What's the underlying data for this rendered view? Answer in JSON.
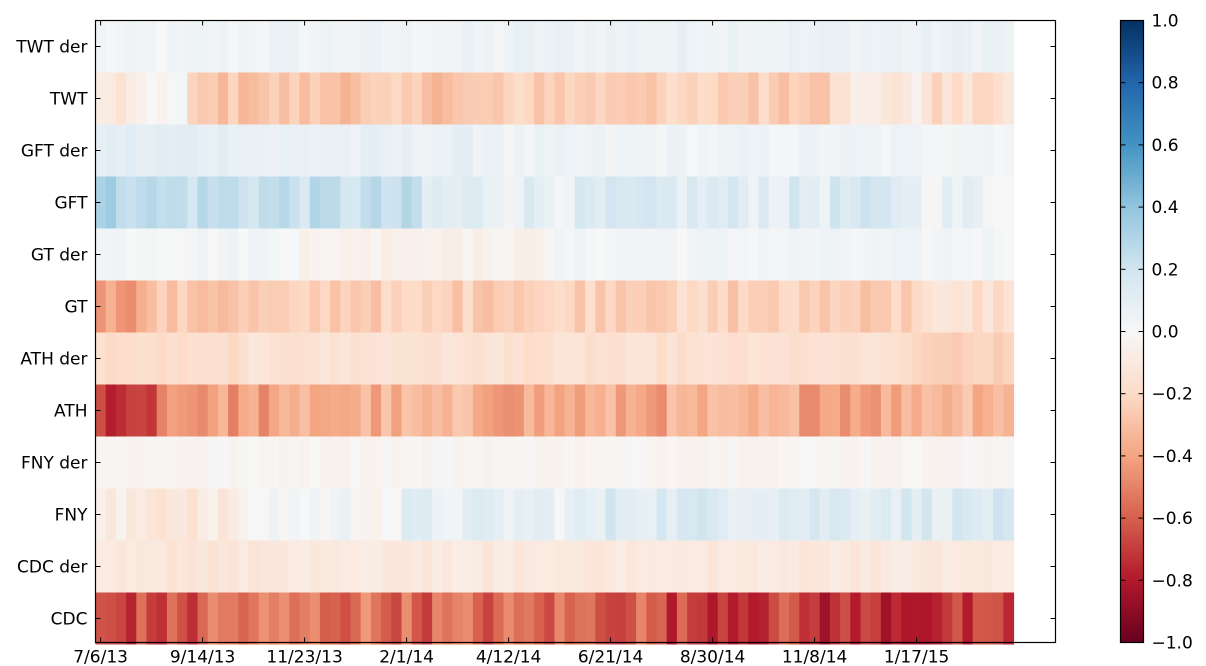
{
  "chart_data": {
    "type": "heatmap",
    "title": "",
    "xlabel": "",
    "ylabel": "",
    "rows": [
      "TWT der",
      "TWT",
      "GFT der",
      "GFT",
      "GT der",
      "GT",
      "ATH der",
      "ATH",
      "FNY der",
      "FNY",
      "CDC der",
      "CDC"
    ],
    "x_tick_labels": [
      "7/6/13",
      "9/14/13",
      "11/23/13",
      "2/1/14",
      "4/12/14",
      "6/21/14",
      "8/30/14",
      "11/8/14",
      "1/17/15"
    ],
    "x_tick_week_index": [
      0,
      10,
      20,
      30,
      40,
      50,
      60,
      70,
      80
    ],
    "n_weeks": 90,
    "colorbar": {
      "colormap": "RdBu",
      "min": -1.0,
      "max": 1.0,
      "tick_labels": [
        "1.0",
        "0.8",
        "0.6",
        "0.4",
        "0.2",
        "0.0",
        "−0.2",
        "−0.4",
        "−0.6",
        "−0.8",
        "−1.0"
      ],
      "tick_values": [
        1.0,
        0.8,
        0.6,
        0.4,
        0.2,
        0.0,
        -0.2,
        -0.4,
        -0.6,
        -0.8,
        -1.0
      ]
    },
    "row_profiles": [
      {
        "row": "TWT der",
        "segments": [
          [
            0,
            10,
            0.02
          ],
          [
            10,
            40,
            0.04
          ],
          [
            40,
            90,
            0.06
          ]
        ],
        "noise": 0.03
      },
      {
        "row": "TWT",
        "segments": [
          [
            0,
            5,
            -0.12
          ],
          [
            5,
            9,
            0.0
          ],
          [
            9,
            40,
            -0.28
          ],
          [
            40,
            72,
            -0.24
          ],
          [
            72,
            82,
            -0.1
          ],
          [
            82,
            90,
            -0.18
          ]
        ],
        "noise": 0.07
      },
      {
        "row": "GFT der",
        "segments": [
          [
            0,
            15,
            0.1
          ],
          [
            15,
            40,
            0.07
          ],
          [
            40,
            90,
            0.04
          ]
        ],
        "noise": 0.03
      },
      {
        "row": "GFT",
        "segments": [
          [
            0,
            5,
            0.3
          ],
          [
            5,
            20,
            0.24
          ],
          [
            20,
            32,
            0.22
          ],
          [
            32,
            50,
            0.1
          ],
          [
            50,
            72,
            0.12
          ],
          [
            72,
            80,
            0.14
          ],
          [
            80,
            90,
            0.06
          ]
        ],
        "noise": 0.08
      },
      {
        "row": "GT der",
        "segments": [
          [
            0,
            20,
            0.03
          ],
          [
            20,
            45,
            -0.04
          ],
          [
            45,
            90,
            0.03
          ]
        ],
        "noise": 0.03
      },
      {
        "row": "GT",
        "segments": [
          [
            0,
            5,
            -0.4
          ],
          [
            5,
            20,
            -0.28
          ],
          [
            20,
            40,
            -0.24
          ],
          [
            40,
            60,
            -0.22
          ],
          [
            60,
            80,
            -0.24
          ],
          [
            80,
            90,
            -0.16
          ]
        ],
        "noise": 0.07
      },
      {
        "row": "ATH der",
        "segments": [
          [
            0,
            15,
            -0.18
          ],
          [
            15,
            40,
            -0.14
          ],
          [
            40,
            80,
            -0.16
          ],
          [
            80,
            90,
            -0.24
          ]
        ],
        "noise": 0.03
      },
      {
        "row": "ATH",
        "segments": [
          [
            0,
            6,
            -0.7
          ],
          [
            6,
            20,
            -0.42
          ],
          [
            20,
            40,
            -0.36
          ],
          [
            40,
            60,
            -0.38
          ],
          [
            60,
            80,
            -0.38
          ],
          [
            80,
            90,
            -0.3
          ]
        ],
        "noise": 0.1
      },
      {
        "row": "FNY der",
        "segments": [
          [
            0,
            90,
            -0.02
          ]
        ],
        "noise": 0.02
      },
      {
        "row": "FNY",
        "segments": [
          [
            0,
            15,
            -0.1
          ],
          [
            15,
            30,
            0.02
          ],
          [
            30,
            50,
            0.08
          ],
          [
            50,
            90,
            0.14
          ]
        ],
        "noise": 0.07
      },
      {
        "row": "CDC der",
        "segments": [
          [
            0,
            20,
            -0.12
          ],
          [
            20,
            90,
            -0.1
          ]
        ],
        "noise": 0.03
      },
      {
        "row": "CDC",
        "segments": [
          [
            0,
            10,
            -0.66
          ],
          [
            10,
            30,
            -0.54
          ],
          [
            30,
            55,
            -0.58
          ],
          [
            55,
            70,
            -0.68
          ],
          [
            70,
            90,
            -0.74
          ]
        ],
        "noise": 0.13
      }
    ]
  }
}
